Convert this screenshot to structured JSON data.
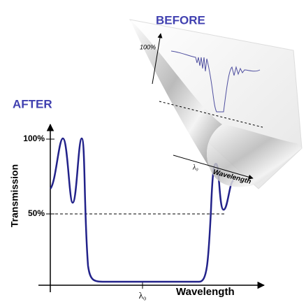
{
  "after": {
    "title": "AFTER",
    "y_axis_label": "Transmission",
    "x_axis_label": "Wavelength",
    "tick_100": "100%",
    "tick_50": "50%",
    "center_label": "λ₀"
  },
  "before": {
    "title": "BEFORE",
    "tick_100": "100%",
    "center_label": "λ₀",
    "x_axis_label": "Wavelength"
  }
}
